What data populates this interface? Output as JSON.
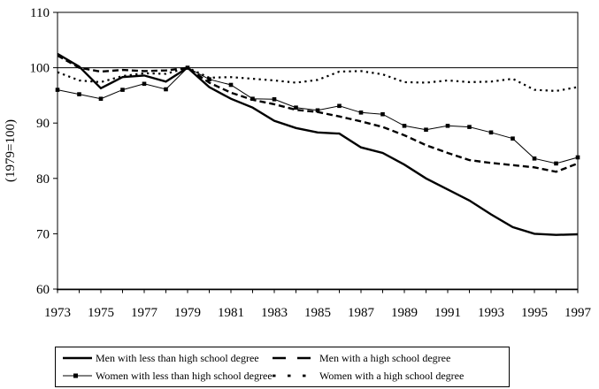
{
  "colors": {
    "line": "#000000",
    "background": "#ffffff",
    "text": "#000000"
  },
  "chart_data": {
    "type": "line",
    "title": "",
    "xlabel": "",
    "ylabel": "(1979=100)",
    "ylim": [
      60,
      110
    ],
    "yticks": [
      60,
      70,
      80,
      90,
      100,
      110
    ],
    "xticks": [
      1973,
      1975,
      1977,
      1979,
      1981,
      1983,
      1985,
      1987,
      1989,
      1991,
      1993,
      1995,
      1997
    ],
    "refline_y": 100,
    "grid": "off",
    "legend_position": "bottom-box",
    "x": [
      1973,
      1974,
      1975,
      1976,
      1977,
      1978,
      1979,
      1980,
      1981,
      1982,
      1983,
      1984,
      1985,
      1986,
      1987,
      1988,
      1989,
      1990,
      1991,
      1992,
      1993,
      1994,
      1995,
      1996,
      1997
    ],
    "series": [
      {
        "name": "men-less-than-high-school",
        "label": "Men with less than high school degree",
        "style": "solid-thick",
        "values": [
          102.5,
          100.2,
          96.3,
          98.3,
          98.6,
          97.5,
          100,
          96.5,
          94.4,
          92.8,
          90.4,
          89.1,
          88.3,
          88.1,
          85.6,
          84.6,
          82.5,
          80.0,
          78.0,
          76.0,
          73.5,
          71.2,
          70.0,
          69.8,
          69.9
        ]
      },
      {
        "name": "men-high-school",
        "label": "Men with a high school degree",
        "style": "dashed",
        "values": [
          102.2,
          100.0,
          99.3,
          99.6,
          99.4,
          99.5,
          100,
          97.3,
          95.5,
          94.2,
          93.4,
          92.4,
          92.0,
          91.2,
          90.3,
          89.3,
          87.8,
          86.0,
          84.6,
          83.3,
          82.8,
          82.4,
          82.0,
          81.2,
          82.7
        ]
      },
      {
        "name": "women-less-than-high-school",
        "label": "Women with less than high school degree",
        "style": "solid-thin-squares",
        "values": [
          96.0,
          95.2,
          94.4,
          96.0,
          97.1,
          96.1,
          100,
          97.9,
          96.9,
          94.4,
          94.3,
          92.8,
          92.3,
          93.1,
          91.9,
          91.6,
          89.5,
          88.8,
          89.5,
          89.3,
          88.3,
          87.2,
          83.6,
          82.7,
          83.8
        ]
      },
      {
        "name": "women-high-school",
        "label": "Women with a high school degree",
        "style": "dotted",
        "values": [
          99.2,
          97.7,
          97.4,
          98.5,
          99.0,
          98.9,
          100,
          98.2,
          98.3,
          98.0,
          97.7,
          97.3,
          97.8,
          99.3,
          99.4,
          98.8,
          97.4,
          97.3,
          97.7,
          97.4,
          97.5,
          98.0,
          96.0,
          95.8,
          96.5
        ]
      }
    ]
  }
}
